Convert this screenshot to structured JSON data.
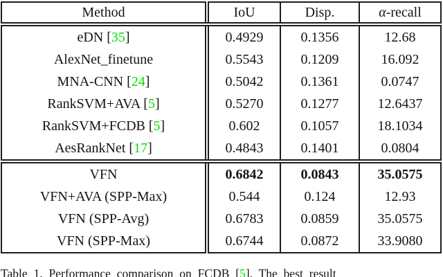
{
  "colors": {
    "background": "#ffffff",
    "text": "#141414",
    "border": "#1c1c1c",
    "citation_green": "#00e000"
  },
  "table": {
    "columns": [
      {
        "label": "Method"
      },
      {
        "label": "IoU"
      },
      {
        "label": "Disp."
      },
      {
        "label_prefix": "α",
        "label_rest": "-recall"
      }
    ],
    "cite_open": "[",
    "cite_close": "]",
    "rows": [
      {
        "method": "eDN",
        "cite": "35",
        "iou": "0.4929",
        "disp": "0.1356",
        "arecall": "12.68",
        "bold": false,
        "group_end": false
      },
      {
        "method": "AlexNet_finetune",
        "cite": null,
        "iou": "0.5543",
        "disp": "0.1209",
        "arecall": "16.092",
        "bold": false,
        "group_end": false
      },
      {
        "method": "MNA-CNN",
        "cite": "24",
        "iou": "0.5042",
        "disp": "0.1361",
        "arecall": "0.0747",
        "bold": false,
        "group_end": false
      },
      {
        "method": "RankSVM+AVA",
        "cite": "5",
        "iou": "0.5270",
        "disp": "0.1277",
        "arecall": "12.6437",
        "bold": false,
        "group_end": false
      },
      {
        "method": "RankSVM+FCDB",
        "cite": "5",
        "iou": "0.602",
        "disp": "0.1057",
        "arecall": "18.1034",
        "bold": false,
        "group_end": false
      },
      {
        "method": "AesRankNet",
        "cite": "17",
        "iou": "0.4843",
        "disp": "0.1401",
        "arecall": "0.0804",
        "bold": false,
        "group_end": true
      },
      {
        "method": "VFN",
        "cite": null,
        "iou": "0.6842",
        "disp": "0.0843",
        "arecall": "35.0575",
        "bold": true,
        "group_end": false
      },
      {
        "method": "VFN+AVA (SPP-Max)",
        "cite": null,
        "iou": "0.544",
        "disp": "0.124",
        "arecall": "12.93",
        "bold": false,
        "group_end": false
      },
      {
        "method": "VFN (SPP-Avg)",
        "cite": null,
        "iou": "0.6783",
        "disp": "0.0859",
        "arecall": "35.0575",
        "bold": false,
        "group_end": false
      },
      {
        "method": "VFN (SPP-Max)",
        "cite": null,
        "iou": "0.6744",
        "disp": "0.0872",
        "arecall": "33.9080",
        "bold": false,
        "group_end": false
      }
    ]
  },
  "caption": {
    "before": "Table 1. Performance comparison on FCDB [",
    "cite": "5",
    "after": "]. The best result"
  }
}
